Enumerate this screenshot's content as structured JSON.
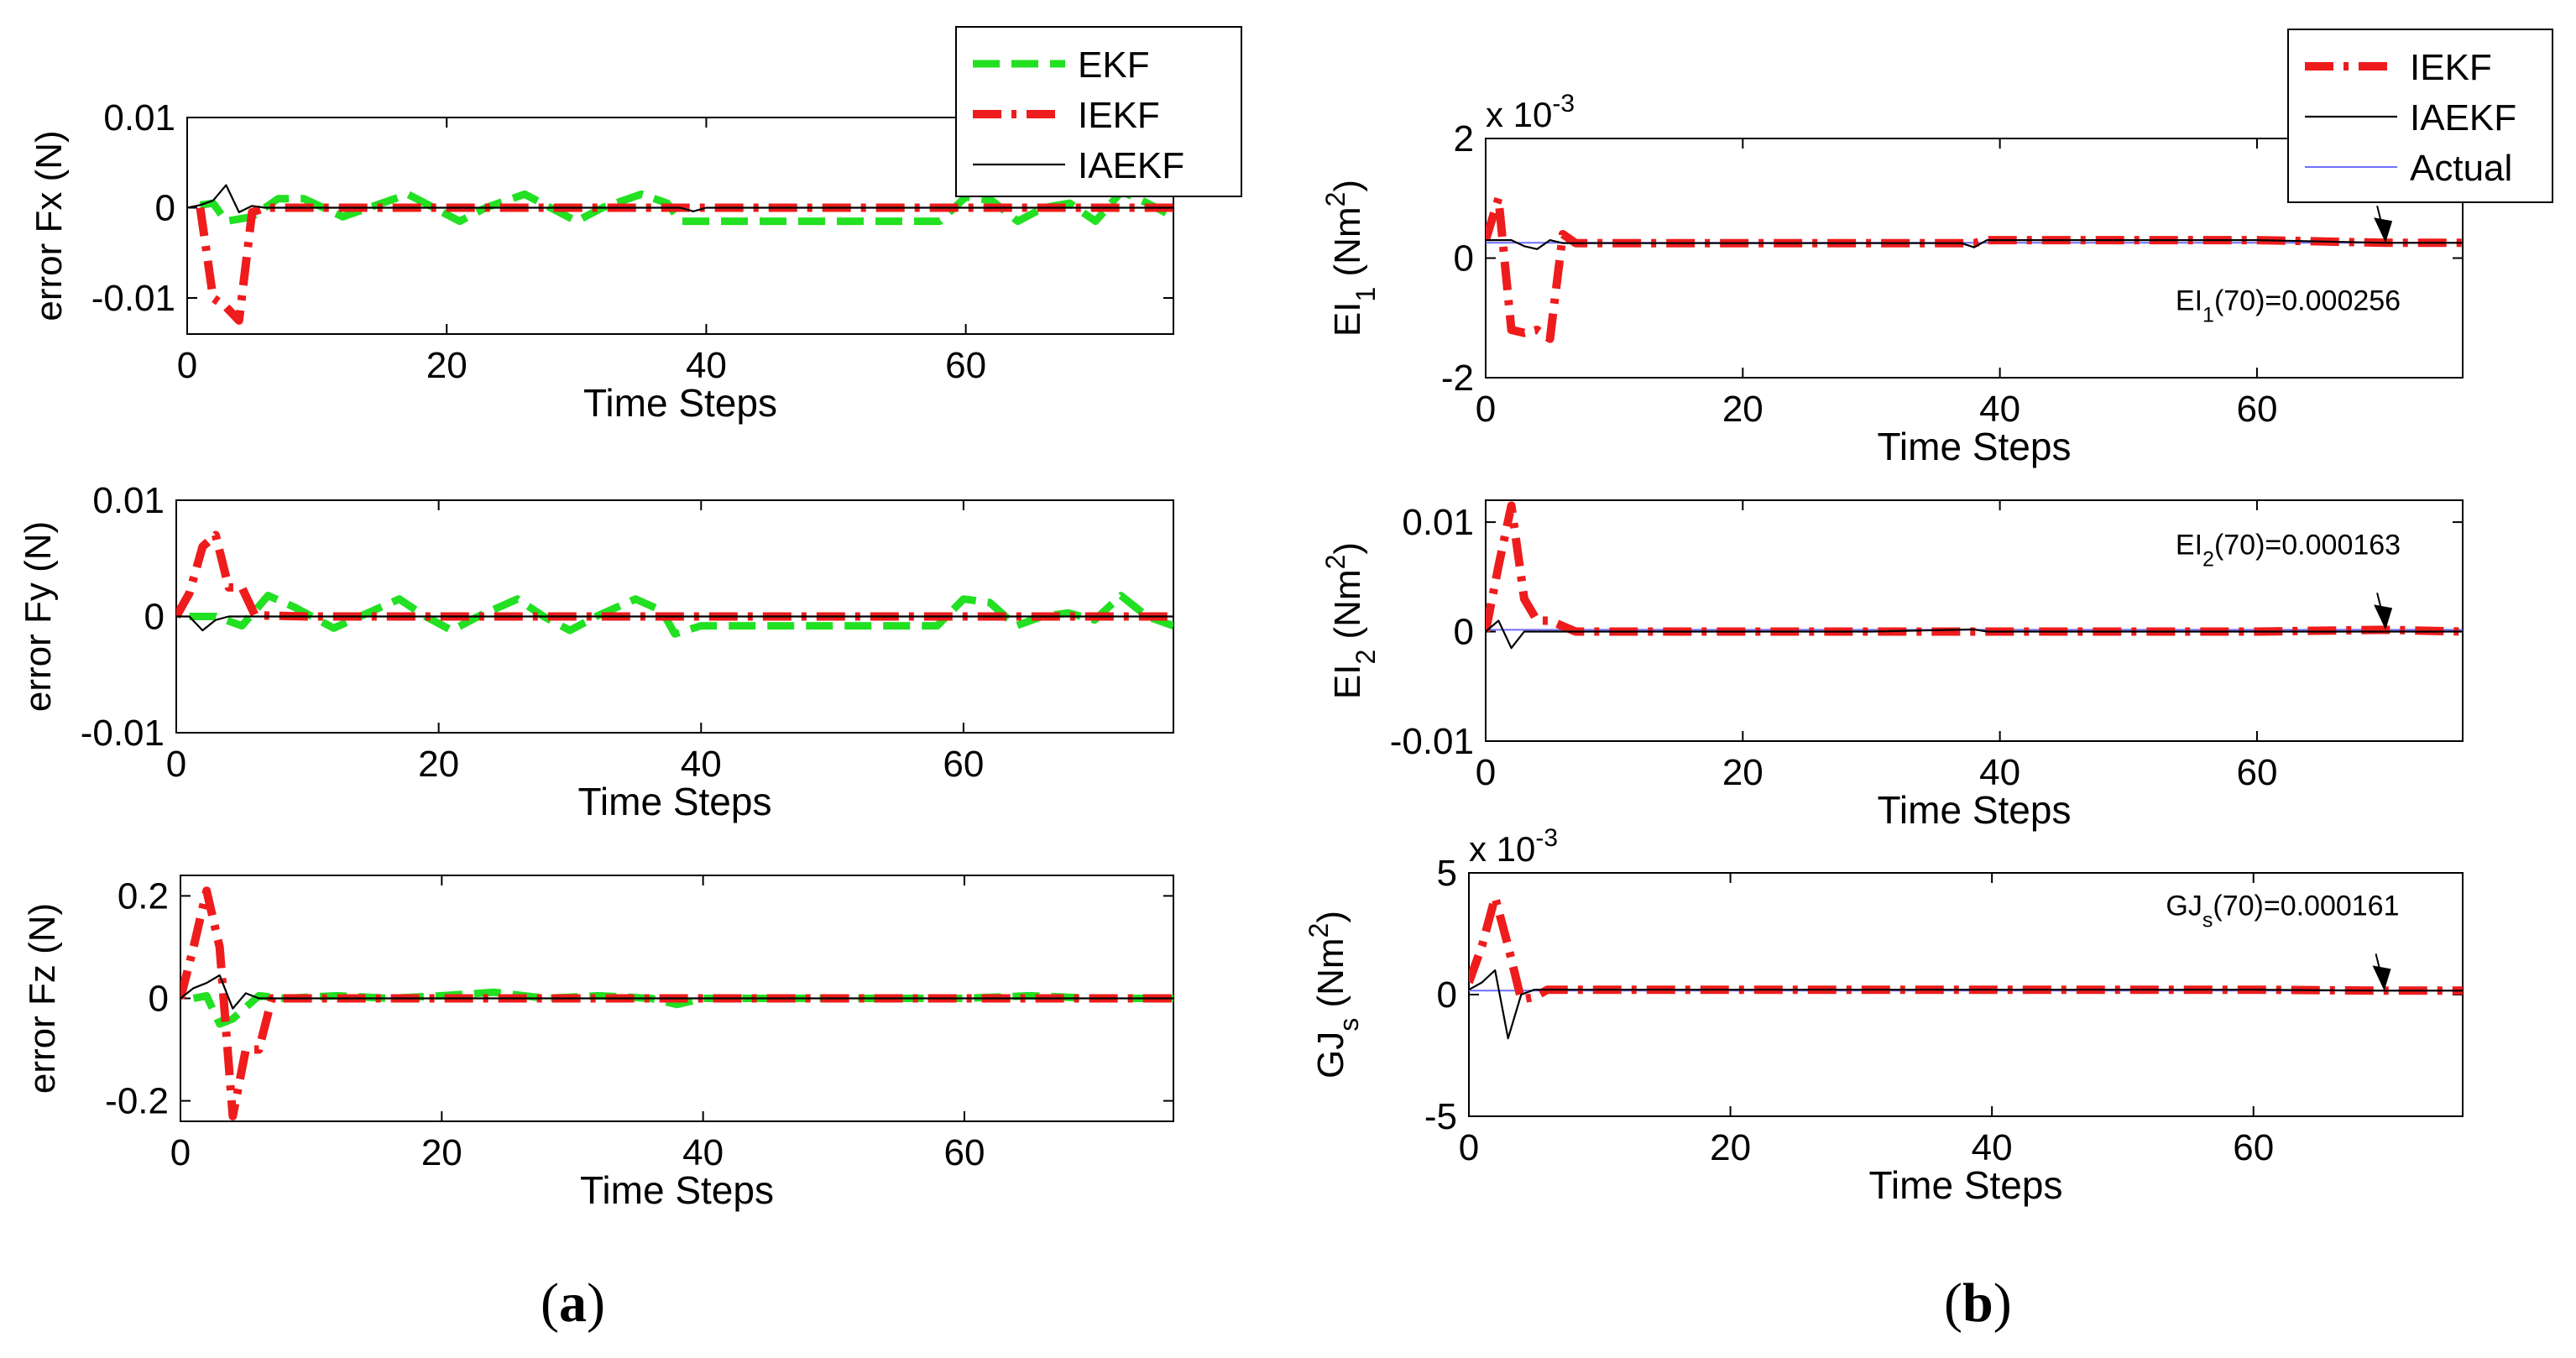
{
  "colors": {
    "ekf": "#22e022",
    "iekf": "#ee1c1c",
    "iaekf": "#000000",
    "actual": "#6f6fff"
  },
  "captions": {
    "a_open": "(",
    "a_letter": "a",
    "a_close": ")",
    "b_open": "(",
    "b_letter": "b",
    "b_close": ")"
  },
  "chart_data": [
    {
      "id": "a1",
      "type": "line",
      "title": "",
      "xlabel": "Time Steps",
      "ylabel": "error Fx (N)",
      "xlim": [
        0,
        76
      ],
      "ylim": [
        -0.014,
        0.01
      ],
      "xticks": [
        0,
        20,
        40,
        60
      ],
      "xtick_labels": [
        "0",
        "20",
        "40",
        "60"
      ],
      "yticks": [
        -0.01,
        0,
        0.01
      ],
      "ytick_labels": [
        "-0.01",
        "0",
        "0.01"
      ],
      "legend": {
        "placement": "top-right",
        "entries": [
          "EKF",
          "IEKF",
          "IAEKF"
        ]
      },
      "series": [
        {
          "name": "EKF",
          "style": "dash",
          "x": [
            1,
            2,
            3,
            5,
            7,
            9,
            12,
            14,
            17,
            19,
            21,
            23,
            26,
            28,
            30,
            32,
            35,
            37,
            38,
            40,
            45,
            50,
            55,
            58,
            60,
            62,
            64,
            66,
            68,
            70,
            72,
            74,
            76
          ],
          "y": [
            0.0003,
            0.0005,
            -0.0015,
            -0.001,
            0.001,
            0.001,
            -0.001,
            0,
            0.0015,
            0,
            -0.0015,
            0,
            0.0015,
            0,
            -0.0015,
            0,
            0.0015,
            0.0005,
            -0.0015,
            -0.0015,
            -0.0015,
            -0.0015,
            -0.0015,
            -0.0015,
            0.0012,
            0.0008,
            -0.0015,
            0,
            0.0005,
            -0.0015,
            0.0018,
            0.0005,
            -0.001
          ]
        },
        {
          "name": "IEKF",
          "style": "dashdot",
          "x": [
            1,
            2,
            3,
            4,
            5,
            6,
            10,
            20,
            30,
            40,
            50,
            60,
            70,
            76
          ],
          "y": [
            0,
            -0.01,
            -0.011,
            -0.0125,
            -0.0005,
            0,
            0,
            0,
            0,
            0,
            0,
            0,
            0,
            0
          ]
        },
        {
          "name": "IAEKF",
          "style": "solid",
          "x": [
            0,
            1,
            2,
            3,
            4,
            5,
            6,
            10,
            20,
            30,
            38,
            39,
            40,
            50,
            60,
            70,
            76
          ],
          "y": [
            0,
            0.0003,
            0.0008,
            0.0025,
            -0.0005,
            0.0002,
            0,
            0,
            0,
            0,
            0,
            -0.0004,
            0,
            0,
            0,
            0,
            0
          ]
        }
      ]
    },
    {
      "id": "a2",
      "type": "line",
      "title": "",
      "xlabel": "Time Steps",
      "ylabel": "error Fy (N)",
      "xlim": [
        0,
        76
      ],
      "ylim": [
        -0.01,
        0.01
      ],
      "xticks": [
        0,
        20,
        40,
        60
      ],
      "xtick_labels": [
        "0",
        "20",
        "40",
        "60"
      ],
      "yticks": [
        -0.01,
        0,
        0.01
      ],
      "ytick_labels": [
        "-0.01",
        "0",
        "0.01"
      ],
      "series": [
        {
          "name": "EKF",
          "style": "dash",
          "x": [
            1,
            3,
            5,
            7,
            9,
            12,
            14,
            17,
            19,
            21,
            23,
            26,
            28,
            30,
            32,
            35,
            37,
            38,
            40,
            45,
            50,
            55,
            58,
            60,
            62,
            64,
            66,
            68,
            70,
            72,
            74,
            76
          ],
          "y": [
            0,
            0,
            -0.0008,
            0.0018,
            0.0008,
            -0.001,
            0,
            0.0015,
            0,
            -0.0012,
            0,
            0.0015,
            0,
            -0.0012,
            0,
            0.0015,
            0.0005,
            -0.0015,
            -0.0008,
            -0.0008,
            -0.0008,
            -0.0008,
            -0.0008,
            0.0015,
            0.0012,
            -0.0008,
            0,
            0.0003,
            -0.0003,
            0.0018,
            0,
            -0.0008
          ]
        },
        {
          "name": "IEKF",
          "style": "dashdot",
          "x": [
            0,
            1,
            2,
            3,
            4,
            5,
            6,
            10,
            20,
            30,
            40,
            50,
            60,
            70,
            76
          ],
          "y": [
            0,
            0.002,
            0.006,
            0.007,
            0.0025,
            0.0025,
            0.0001,
            0,
            0,
            0,
            0,
            0,
            0,
            0,
            0
          ]
        },
        {
          "name": "IAEKF",
          "style": "solid",
          "x": [
            0,
            1,
            2,
            3,
            4,
            6,
            10,
            20,
            30,
            40,
            50,
            60,
            70,
            76
          ],
          "y": [
            0,
            0,
            -0.0012,
            -0.0003,
            0,
            0,
            0,
            0,
            0,
            0,
            0,
            0,
            0,
            0
          ]
        }
      ]
    },
    {
      "id": "a3",
      "type": "line",
      "title": "",
      "xlabel": "Time Steps",
      "ylabel": "error Fz (N)",
      "xlim": [
        0,
        76
      ],
      "ylim": [
        -0.24,
        0.24
      ],
      "xticks": [
        0,
        20,
        40,
        60
      ],
      "xtick_labels": [
        "0",
        "20",
        "40",
        "60"
      ],
      "yticks": [
        -0.2,
        0,
        0.2
      ],
      "ytick_labels": [
        "-0.2",
        "0",
        "0.2"
      ],
      "series": [
        {
          "name": "EKF",
          "style": "dash",
          "x": [
            1,
            2,
            3,
            4,
            6,
            8,
            12,
            16,
            20,
            24,
            28,
            32,
            36,
            38,
            40,
            45,
            50,
            55,
            60,
            65,
            70,
            76
          ],
          "y": [
            0,
            0.005,
            -0.05,
            -0.04,
            0.005,
            0,
            0.005,
            0,
            0.005,
            0.012,
            0,
            0.005,
            0,
            -0.012,
            0,
            0,
            0,
            0,
            0,
            0.005,
            0,
            0
          ]
        },
        {
          "name": "IEKF",
          "style": "dashdot",
          "x": [
            0,
            1,
            2,
            3,
            4,
            5,
            6,
            7,
            8,
            10,
            20,
            30,
            40,
            50,
            60,
            70,
            76
          ],
          "y": [
            0,
            0.1,
            0.21,
            0.1,
            -0.23,
            -0.1,
            -0.1,
            0,
            0,
            0,
            0,
            0,
            0,
            0,
            0,
            0,
            0
          ]
        },
        {
          "name": "IAEKF",
          "style": "solid",
          "x": [
            0,
            1,
            2,
            3,
            4,
            5,
            6,
            10,
            20,
            30,
            40,
            50,
            60,
            70,
            76
          ],
          "y": [
            0,
            0.02,
            0.03,
            0.045,
            -0.02,
            0.01,
            0,
            0,
            0,
            0,
            0,
            0,
            0,
            0,
            0
          ]
        }
      ]
    },
    {
      "id": "b1",
      "type": "line",
      "title": "",
      "xlabel": "Time Steps",
      "ylabel_main": "EI",
      "ylabel_sub": "1",
      "ylabel_unit": " (Nm",
      "ylabel_sup": "2",
      "ylabel_end": ")",
      "exponent": {
        "base": "x 10",
        "power": "-3"
      },
      "xlim": [
        0,
        76
      ],
      "ylim": [
        -2,
        2
      ],
      "xticks": [
        0,
        20,
        40,
        60
      ],
      "xtick_labels": [
        "0",
        "20",
        "40",
        "60"
      ],
      "yticks": [
        -2,
        0,
        2
      ],
      "ytick_labels": [
        "-2",
        "0",
        "2"
      ],
      "legend": {
        "placement": "top-right",
        "entries": [
          "IEKF",
          "IAEKF",
          "Actual"
        ]
      },
      "annotation": {
        "text_main": "EI",
        "text_sub": "1",
        "text_rest": "(70)=0.000256",
        "x": 70,
        "y": 0.256
      },
      "series": [
        {
          "name": "IEKF",
          "style": "dashdot",
          "x": [
            0,
            1,
            2,
            3,
            4,
            5,
            6,
            7,
            10,
            20,
            30,
            38,
            39,
            40,
            50,
            60,
            70,
            76
          ],
          "y": [
            0.3,
            1,
            -1.2,
            -1.25,
            -1.2,
            -1.35,
            0.4,
            0.25,
            0.25,
            0.25,
            0.25,
            0.25,
            0.3,
            0.3,
            0.3,
            0.3,
            0.256,
            0.256
          ]
        },
        {
          "name": "IAEKF",
          "style": "solid",
          "x": [
            0,
            2,
            3,
            4,
            5,
            6,
            10,
            20,
            30,
            37,
            38,
            39,
            40,
            50,
            60,
            70,
            76
          ],
          "y": [
            0.3,
            0.3,
            0.2,
            0.15,
            0.3,
            0.25,
            0.25,
            0.25,
            0.25,
            0.25,
            0.18,
            0.3,
            0.3,
            0.3,
            0.3,
            0.256,
            0.256
          ]
        },
        {
          "name": "Actual",
          "style": "solid",
          "x": [
            0,
            76
          ],
          "y": [
            0.256,
            0.256
          ]
        }
      ]
    },
    {
      "id": "b2",
      "type": "line",
      "title": "",
      "xlabel": "Time Steps",
      "ylabel_main": "EI",
      "ylabel_sub": "2",
      "ylabel_unit": " (Nm",
      "ylabel_sup": "2",
      "ylabel_end": ")",
      "xlim": [
        0,
        76
      ],
      "ylim": [
        -0.01,
        0.012
      ],
      "xticks": [
        0,
        20,
        40,
        60
      ],
      "xtick_labels": [
        "0",
        "20",
        "40",
        "60"
      ],
      "yticks": [
        -0.01,
        0,
        0.01
      ],
      "ytick_labels": [
        "-0.01",
        "0",
        "0.01"
      ],
      "annotation": {
        "text_main": "EI",
        "text_sub": "2",
        "text_rest": "(70)=0.000163",
        "x": 70,
        "y": 0.000163
      },
      "series": [
        {
          "name": "IEKF",
          "style": "dashdot",
          "x": [
            0,
            1,
            2,
            3,
            4,
            5,
            6,
            7,
            10,
            20,
            30,
            40,
            50,
            60,
            70,
            76
          ],
          "y": [
            0,
            0.006,
            0.0115,
            0.003,
            0.001,
            0.001,
            0.0005,
            0,
            0,
            0,
            0,
            0,
            0,
            0,
            0.000163,
            0
          ]
        },
        {
          "name": "IAEKF",
          "style": "solid",
          "x": [
            0,
            1,
            2,
            3,
            4,
            5,
            6,
            10,
            20,
            30,
            38,
            39,
            40,
            50,
            60,
            70,
            76
          ],
          "y": [
            0,
            0.001,
            -0.0015,
            0,
            0,
            0,
            0,
            0,
            0,
            0,
            0.0002,
            0,
            0,
            0,
            0,
            0,
            0
          ]
        },
        {
          "name": "Actual",
          "style": "solid",
          "x": [
            0,
            76
          ],
          "y": [
            0.000163,
            0.000163
          ]
        }
      ]
    },
    {
      "id": "b3",
      "type": "line",
      "title": "",
      "xlabel": "Time Steps",
      "ylabel_main": "GJ",
      "ylabel_sub": "s",
      "ylabel_unit": " (Nm",
      "ylabel_sup": "2",
      "ylabel_end": ")",
      "exponent": {
        "base": "x 10",
        "power": "-3"
      },
      "xlim": [
        0,
        76
      ],
      "ylim": [
        -5,
        5
      ],
      "xticks": [
        0,
        20,
        40,
        60
      ],
      "xtick_labels": [
        "0",
        "20",
        "40",
        "60"
      ],
      "yticks": [
        -5,
        0,
        5
      ],
      "ytick_labels": [
        "-5",
        "0",
        "5"
      ],
      "annotation": {
        "text_main": "GJ",
        "text_sub": "s",
        "text_rest": "(70)=0.000161",
        "x": 70,
        "y": 0.161
      },
      "series": [
        {
          "name": "IEKF",
          "style": "dashdot",
          "x": [
            0,
            1,
            2,
            3,
            4,
            5,
            6,
            7,
            10,
            20,
            30,
            40,
            50,
            60,
            70,
            76
          ],
          "y": [
            0.5,
            2,
            4,
            2,
            -0.2,
            -0.1,
            0.2,
            0.2,
            0.2,
            0.2,
            0.2,
            0.2,
            0.2,
            0.2,
            0.161,
            0.161
          ]
        },
        {
          "name": "IAEKF",
          "style": "solid",
          "x": [
            0,
            1,
            2,
            3,
            4,
            5,
            6,
            10,
            20,
            30,
            40,
            50,
            60,
            70,
            76
          ],
          "y": [
            0.2,
            0.5,
            1,
            -1.8,
            0,
            0.2,
            0.2,
            0.2,
            0.2,
            0.2,
            0.2,
            0.2,
            0.2,
            0.161,
            0.161
          ]
        },
        {
          "name": "Actual",
          "style": "solid",
          "x": [
            0,
            76
          ],
          "y": [
            0.161,
            0.161
          ]
        }
      ]
    }
  ]
}
